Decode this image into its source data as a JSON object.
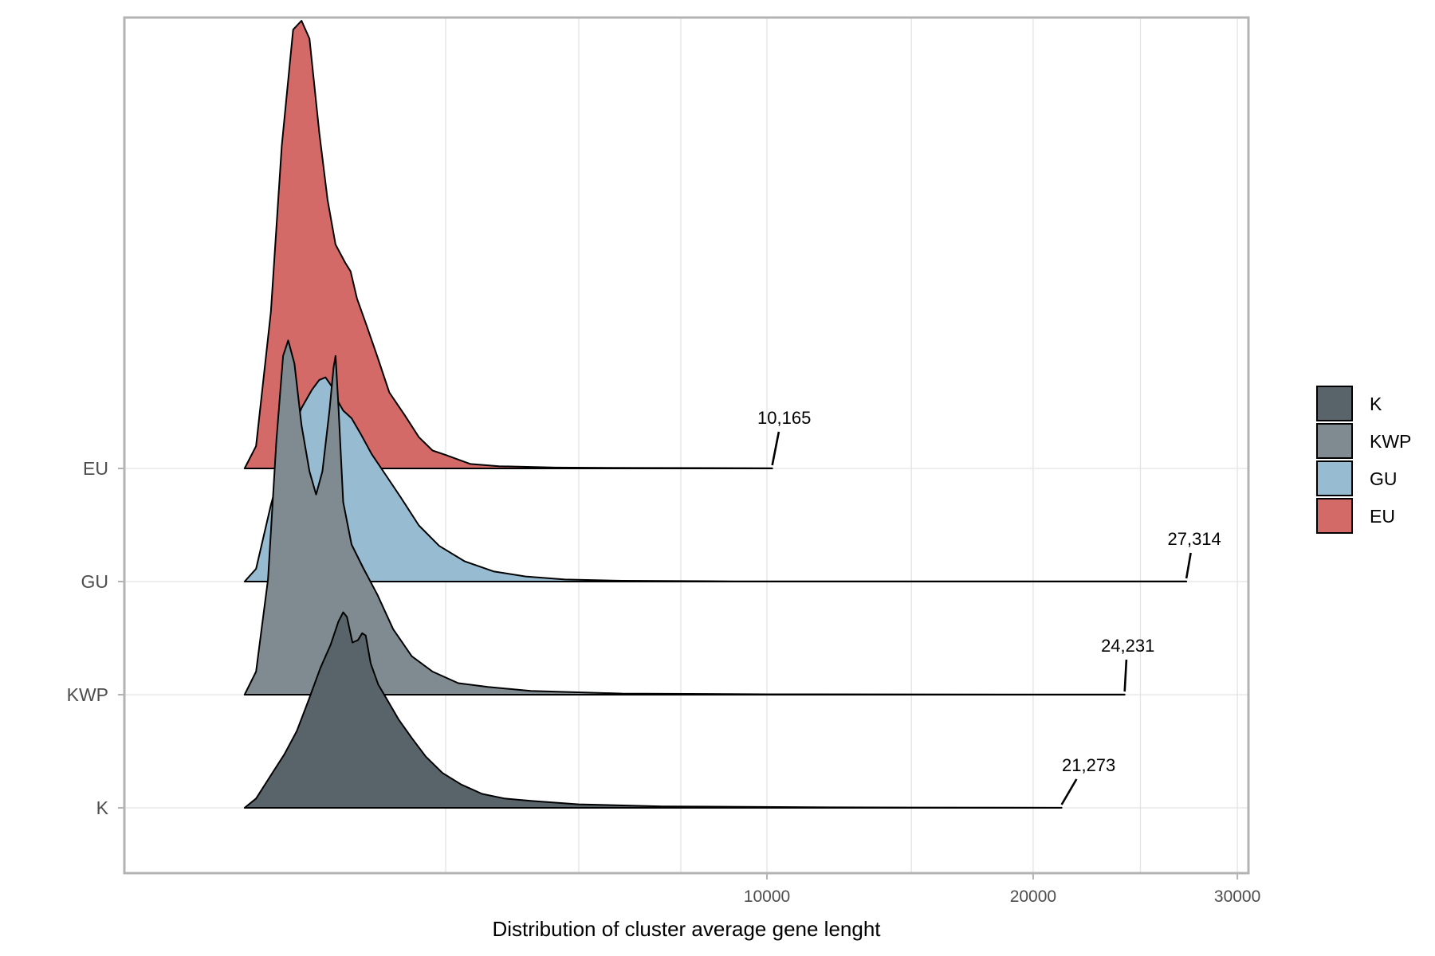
{
  "chart_data": {
    "type": "area",
    "subtype": "ridgeline-density",
    "xlabel": "Distribution of cluster average gene lenght",
    "ylabel": "",
    "title": "",
    "x_scale": "sqrt",
    "xlim": [
      0,
      30600
    ],
    "x_ticks": [
      10000,
      20000,
      30000
    ],
    "x_tick_labels": [
      "10000",
      "20000",
      "30000"
    ],
    "grid": true,
    "legend_position": "right",
    "categories": [
      "K",
      "KWP",
      "GU",
      "EU"
    ],
    "series": [
      {
        "name": "K",
        "color": "#59646a",
        "max": 21273,
        "max_label": "21,273",
        "density_peaks": [
          {
            "x": 1460,
            "height": 0.3
          },
          {
            "x": 1640,
            "height": 0.28
          }
        ]
      },
      {
        "name": "KWP",
        "color": "#7f8b91",
        "max": 24231,
        "max_label": "24,231",
        "density_peaks": [
          {
            "x": 650,
            "height": 0.36
          },
          {
            "x": 1300,
            "height": 0.34
          }
        ]
      },
      {
        "name": "GU",
        "color": "#97bcd2",
        "max": 27314,
        "max_label": "27,314",
        "density_peaks": [
          {
            "x": 940,
            "height": 0.31
          }
        ]
      },
      {
        "name": "EU",
        "color": "#d46a68",
        "max": 10165,
        "max_label": "10,165",
        "density_peaks": [
          {
            "x": 760,
            "height": 0.4
          }
        ]
      }
    ]
  }
}
